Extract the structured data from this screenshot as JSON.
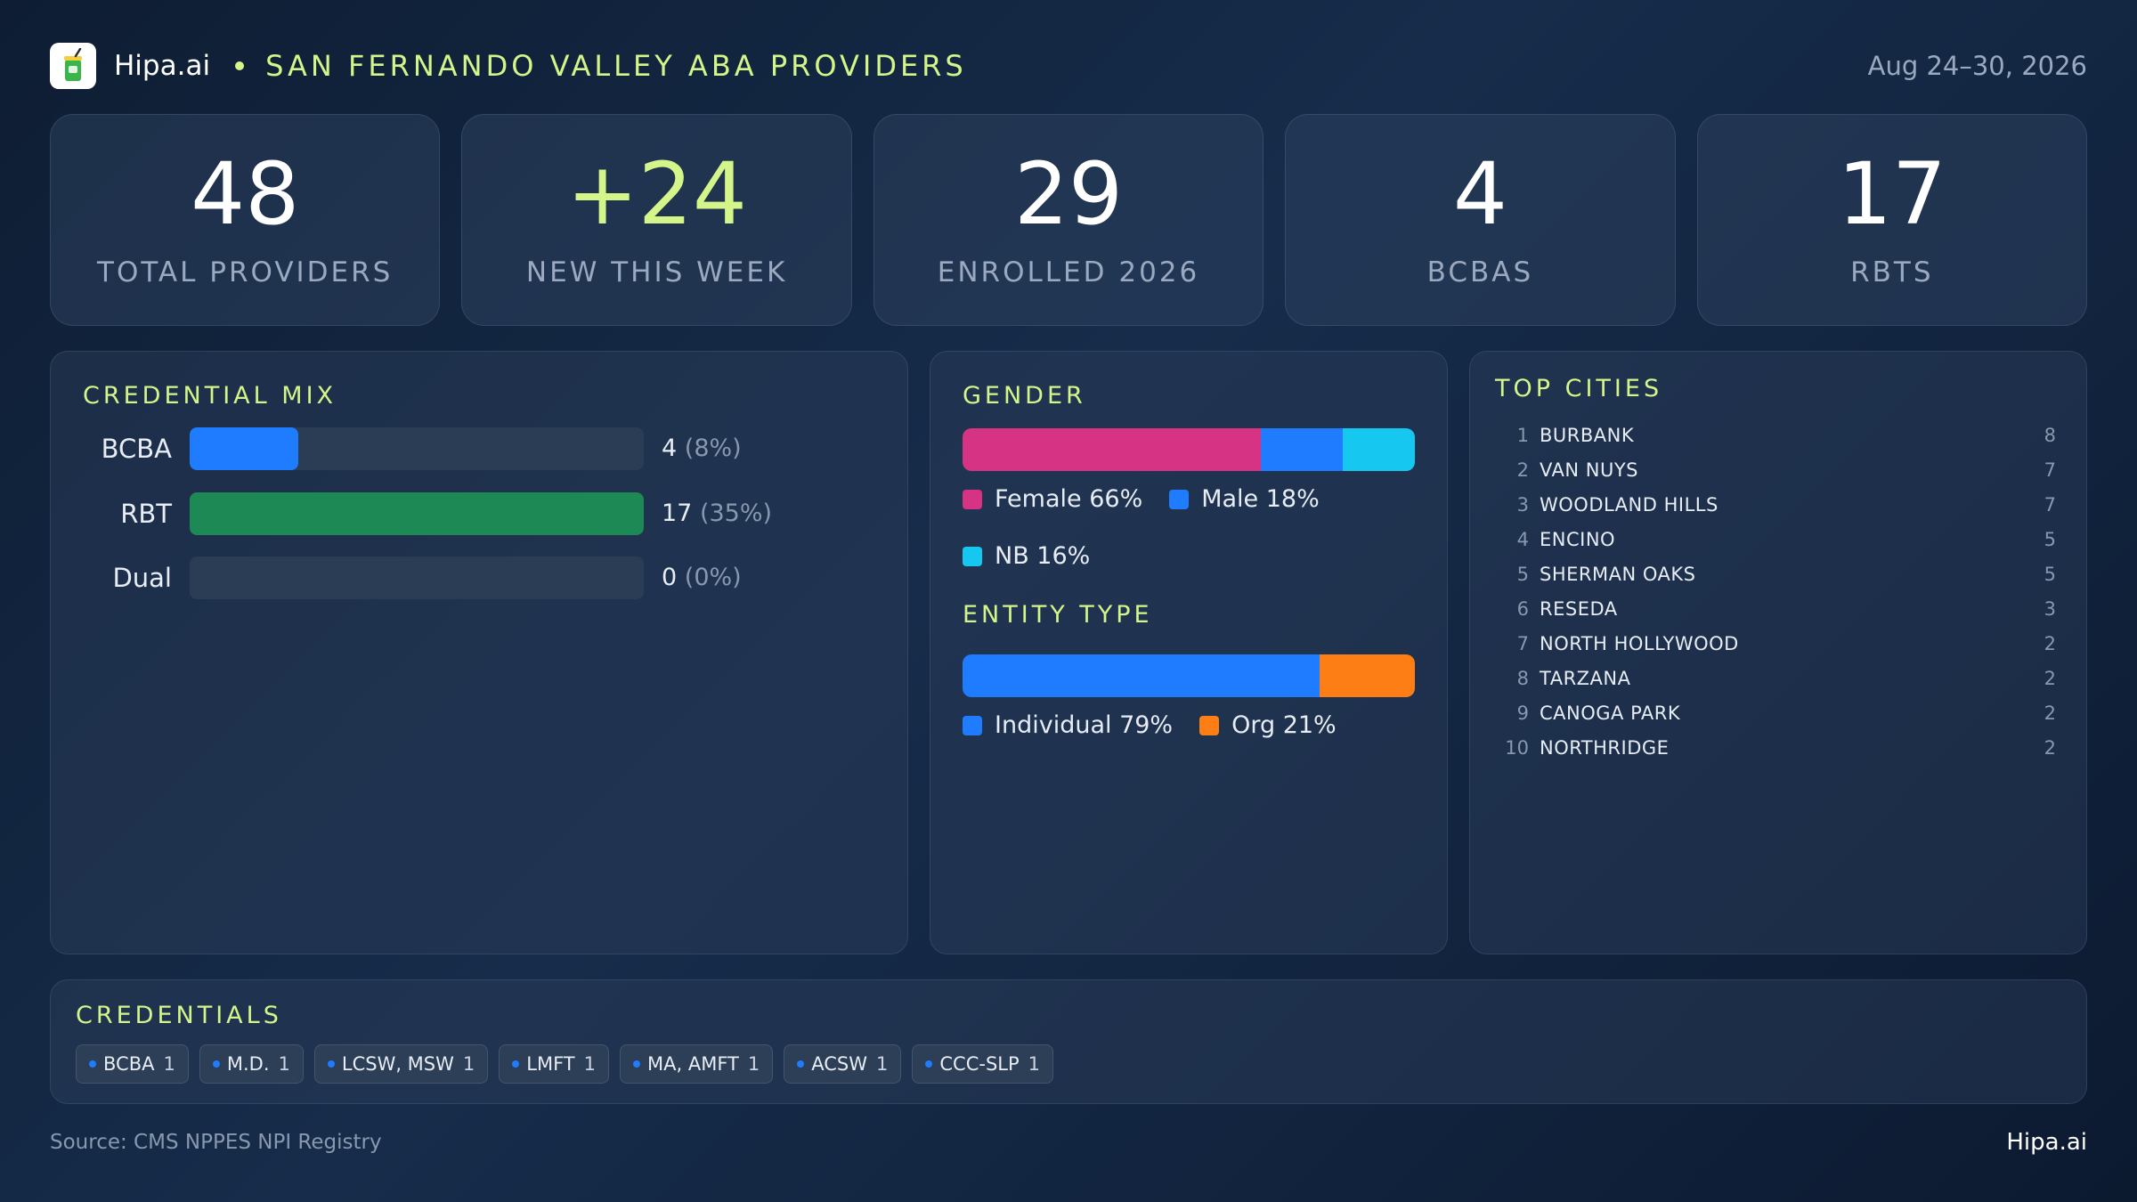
{
  "header": {
    "logo_icon": "drink-cup-icon",
    "brand": "Hipa.ai",
    "title": "SAN FERNANDO VALLEY ABA PROVIDERS",
    "date_range": "Aug 24–30, 2026"
  },
  "kpis": [
    {
      "value": "48",
      "label": "TOTAL PROVIDERS"
    },
    {
      "value": "+24",
      "label": "NEW THIS WEEK",
      "accent": "#d4f58a"
    },
    {
      "value": "29",
      "label": "ENROLLED 2026"
    },
    {
      "value": "4",
      "label": "BCBAS"
    },
    {
      "value": "17",
      "label": "RBTS"
    }
  ],
  "credential_mix": {
    "title": "CREDENTIAL MIX",
    "rows": [
      {
        "label": "BCBA",
        "count": "4",
        "pct": "(8%)",
        "fraction": 0.24,
        "color": "#1f7cff"
      },
      {
        "label": "RBT",
        "count": "17",
        "pct": "(35%)",
        "fraction": 1.0,
        "color": "#1d8a55"
      },
      {
        "label": "Dual",
        "count": "0",
        "pct": "(0%)",
        "fraction": 0,
        "color": "#1f7cff"
      }
    ]
  },
  "gender": {
    "title": "GENDER",
    "segments": [
      {
        "label": "Female 66%",
        "percent": 66,
        "color": "#d63384"
      },
      {
        "label": "Male 18%",
        "percent": 18,
        "color": "#1f7cff"
      },
      {
        "label": "NB 16%",
        "percent": 16,
        "color": "#16c8f0"
      }
    ]
  },
  "entity_type": {
    "title": "ENTITY TYPE",
    "segments": [
      {
        "label": "Individual 79%",
        "percent": 79,
        "color": "#1f7cff"
      },
      {
        "label": "Org 21%",
        "percent": 21,
        "color": "#fd7e14"
      }
    ]
  },
  "top_cities": {
    "title": "TOP CITIES",
    "items": [
      {
        "rank": "1",
        "name": "BURBANK",
        "count": "8"
      },
      {
        "rank": "2",
        "name": "VAN NUYS",
        "count": "7"
      },
      {
        "rank": "3",
        "name": "WOODLAND HILLS",
        "count": "7"
      },
      {
        "rank": "4",
        "name": "ENCINO",
        "count": "5"
      },
      {
        "rank": "5",
        "name": "SHERMAN OAKS",
        "count": "5"
      },
      {
        "rank": "6",
        "name": "RESEDA",
        "count": "3"
      },
      {
        "rank": "7",
        "name": "NORTH HOLLYWOOD",
        "count": "2"
      },
      {
        "rank": "8",
        "name": "TARZANA",
        "count": "2"
      },
      {
        "rank": "9",
        "name": "CANOGA PARK",
        "count": "2"
      },
      {
        "rank": "10",
        "name": "NORTHRIDGE",
        "count": "2"
      }
    ]
  },
  "credentials": {
    "title": "CREDENTIALS",
    "chips": [
      {
        "label": "BCBA",
        "count": "1"
      },
      {
        "label": "M.D.",
        "count": "1"
      },
      {
        "label": "LCSW, MSW",
        "count": "1"
      },
      {
        "label": "LMFT",
        "count": "1"
      },
      {
        "label": "MA, AMFT",
        "count": "1"
      },
      {
        "label": "ACSW",
        "count": "1"
      },
      {
        "label": "CCC-SLP",
        "count": "1"
      }
    ]
  },
  "footer": {
    "source": "Source: CMS NPPES NPI Registry",
    "brand": "Hipa.ai"
  }
}
